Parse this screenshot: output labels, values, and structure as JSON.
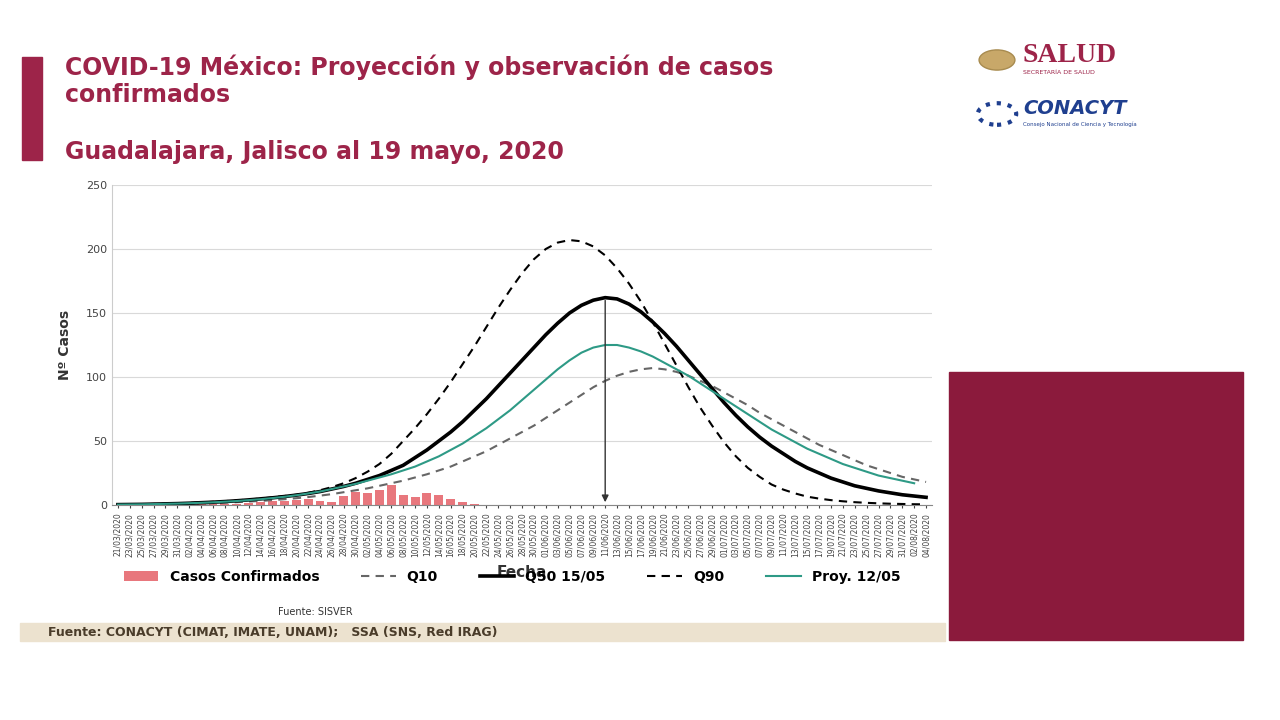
{
  "header": {
    "salud": "SALUD",
    "salud_sub": "SECRETARÍA DE SALUD",
    "conacyt": "CONACYT",
    "conacyt_sub": "Consejo Nacional de Ciencia y Tecnología"
  },
  "footer": "Fuente: CONACYT (CIMAT, IMATE, UNAM);   SSA (SNS, Red IRAG)",
  "chart_data": {
    "type": "line",
    "title": "COVID-19 México: Proyección y observación de casos\nconfirmados",
    "subtitle": "Guadalajara, Jalisco al 19 mayo, 2020",
    "x_label": "Fecha",
    "y_label": "Nº Casos",
    "note": "Fuente: SISVER",
    "grid": true,
    "legend": "lower center",
    "ylim": [
      0,
      250
    ],
    "yticks": [
      0,
      50,
      100,
      150,
      200,
      250
    ],
    "categories": [
      "21/03/2020",
      "23/03/2020",
      "25/03/2020",
      "27/03/2020",
      "29/03/2020",
      "31/03/2020",
      "02/04/2020",
      "04/04/2020",
      "06/04/2020",
      "08/04/2020",
      "10/04/2020",
      "12/04/2020",
      "14/04/2020",
      "16/04/2020",
      "18/04/2020",
      "20/04/2020",
      "22/04/2020",
      "24/04/2020",
      "26/04/2020",
      "28/04/2020",
      "30/04/2020",
      "02/05/2020",
      "04/05/2020",
      "06/05/2020",
      "08/05/2020",
      "10/05/2020",
      "12/05/2020",
      "14/05/2020",
      "16/05/2020",
      "18/05/2020",
      "20/05/2020",
      "22/05/2020",
      "24/05/2020",
      "26/05/2020",
      "28/05/2020",
      "30/05/2020",
      "01/06/2020",
      "03/06/2020",
      "05/06/2020",
      "07/06/2020",
      "09/06/2020",
      "11/06/2020",
      "13/06/2020",
      "15/06/2020",
      "17/06/2020",
      "19/06/2020",
      "21/06/2020",
      "23/06/2020",
      "25/06/2020",
      "27/06/2020",
      "29/06/2020",
      "01/07/2020",
      "03/07/2020",
      "05/07/2020",
      "07/07/2020",
      "09/07/2020",
      "11/07/2020",
      "13/07/2020",
      "15/07/2020",
      "17/07/2020",
      "19/07/2020",
      "21/07/2020",
      "23/07/2020",
      "25/07/2020",
      "27/07/2020",
      "29/07/2020",
      "31/07/2020",
      "02/08/2020",
      "04/08/2020"
    ],
    "series": [
      {
        "name": "Casos Confirmados",
        "type": "bar",
        "color": "#e8777d",
        "values": [
          0,
          0,
          0,
          0,
          0,
          0,
          0.5,
          0.5,
          1,
          1,
          1,
          1.5,
          2,
          3,
          3,
          4,
          5,
          3,
          2,
          7,
          10,
          9,
          12,
          16,
          8,
          6,
          9,
          8,
          5,
          2,
          1,
          null,
          null,
          null,
          null,
          null,
          null,
          null,
          null,
          null,
          null,
          null,
          null,
          null,
          null,
          null,
          null,
          null,
          null,
          null,
          null,
          null,
          null,
          null,
          null,
          null,
          null,
          null,
          null,
          null,
          null,
          null,
          null,
          null,
          null,
          null,
          null,
          null,
          null
        ]
      },
      {
        "name": "Q10",
        "type": "line",
        "color": "#666666",
        "line_style": "dashed",
        "values": [
          0.2,
          0.3,
          0.4,
          0.5,
          0.6,
          0.8,
          1,
          1.2,
          1.5,
          1.8,
          2.2,
          2.7,
          3.2,
          3.8,
          4.5,
          5.3,
          6.2,
          7.3,
          8.5,
          10,
          11.5,
          13,
          15,
          17,
          19,
          21.5,
          24,
          27,
          30,
          34,
          38,
          42,
          47,
          52,
          57,
          62,
          68,
          74,
          80,
          86,
          92,
          97,
          101,
          104,
          106,
          107,
          106,
          104,
          101,
          97,
          93,
          88,
          83,
          78,
          72,
          67,
          62,
          57,
          52,
          47,
          43,
          39,
          35,
          31,
          28,
          25,
          22,
          20,
          18
        ]
      },
      {
        "name": "Q50 15/05",
        "type": "line",
        "color": "#000000",
        "line_style": "solid",
        "values": [
          0.3,
          0.4,
          0.5,
          0.7,
          0.9,
          1.1,
          1.4,
          1.8,
          2.2,
          2.7,
          3.3,
          4,
          4.8,
          5.6,
          6.6,
          7.7,
          9,
          10.5,
          12.5,
          14.5,
          17,
          20,
          23,
          27,
          31,
          37,
          43,
          50,
          57,
          65,
          74,
          83,
          93,
          103,
          113,
          123,
          133,
          142,
          150,
          156,
          160,
          162,
          161,
          157,
          151,
          143,
          134,
          124,
          113,
          102,
          91,
          80,
          70,
          61,
          53,
          46,
          40,
          34,
          29,
          25,
          21,
          18,
          15,
          13,
          11,
          9.5,
          8,
          7,
          6
        ]
      },
      {
        "name": "Q90",
        "type": "line",
        "color": "#000000",
        "line_style": "dashed",
        "values": [
          0.3,
          0.4,
          0.6,
          0.8,
          1,
          1.3,
          1.6,
          2,
          2.5,
          3,
          3.6,
          4.3,
          5,
          6,
          7,
          8,
          9.5,
          11.5,
          14,
          17,
          21,
          26,
          32,
          40,
          50,
          60,
          71,
          83,
          96,
          110,
          124,
          139,
          154,
          168,
          181,
          192,
          200,
          205,
          207,
          206,
          202,
          195,
          185,
          173,
          159,
          143,
          126,
          109,
          92,
          76,
          62,
          49,
          38,
          29,
          22,
          16,
          12,
          9,
          6.5,
          5,
          3.8,
          2.9,
          2.2,
          1.7,
          1.3,
          1,
          0.8,
          0.6,
          0.5
        ]
      },
      {
        "name": "Proy. 12/05",
        "type": "line",
        "color": "#2e9a86",
        "line_style": "solid",
        "values": [
          0.3,
          0.4,
          0.5,
          0.7,
          0.9,
          1.1,
          1.4,
          1.7,
          2.1,
          2.6,
          3.1,
          3.8,
          4.5,
          5.4,
          6.4,
          7.6,
          9,
          10.5,
          12.5,
          14.5,
          16.5,
          19,
          21.5,
          24,
          27,
          30,
          34,
          38,
          43,
          48,
          54,
          60,
          67,
          74,
          82,
          90,
          98,
          106,
          113,
          119,
          123,
          125,
          125,
          123,
          120,
          116,
          111,
          106,
          101,
          95,
          89,
          83,
          77,
          71,
          65,
          59,
          54,
          49,
          44,
          40,
          36,
          32,
          29,
          26,
          23,
          21,
          19,
          17,
          null
        ]
      }
    ]
  }
}
